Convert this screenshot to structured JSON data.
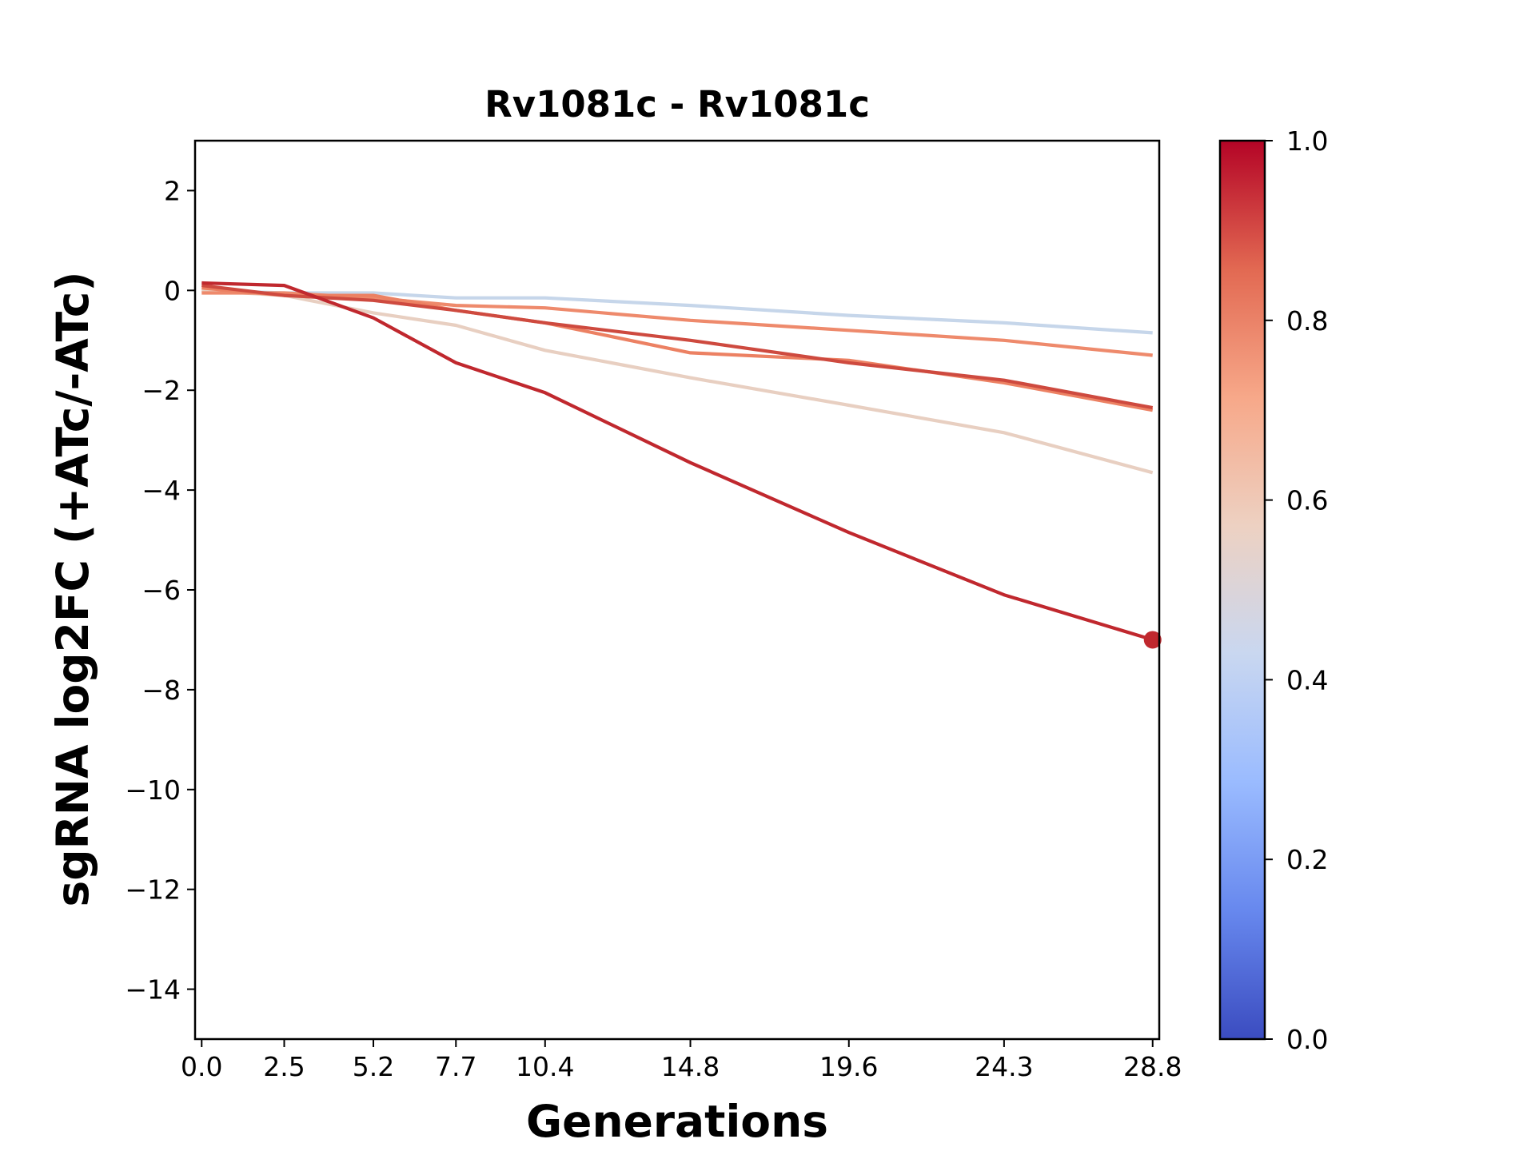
{
  "chart_data": {
    "type": "line",
    "title": "Rv1081c - Rv1081c",
    "xlabel": "Generations",
    "ylabel": "sgRNA log2FC (+ATc/-ATc)",
    "x": [
      0.0,
      2.5,
      5.2,
      7.7,
      10.4,
      14.8,
      19.6,
      24.3,
      28.8
    ],
    "x_tick_labels": [
      "0.0",
      "2.5",
      "5.2",
      "7.7",
      "10.4",
      "14.8",
      "19.6",
      "24.3",
      "28.8"
    ],
    "xlim": [
      -0.2,
      29.0
    ],
    "ylim": [
      -15,
      3
    ],
    "y_ticks": [
      2,
      0,
      -2,
      -4,
      -6,
      -8,
      -10,
      -12,
      -14
    ],
    "y_tick_labels": [
      "2",
      "0",
      "−2",
      "−4",
      "−6",
      "−8",
      "−10",
      "−12",
      "−14"
    ],
    "grid": false,
    "series": [
      {
        "color": "#c6d6ea",
        "values": [
          0.0,
          -0.05,
          -0.05,
          -0.15,
          -0.15,
          -0.3,
          -0.5,
          -0.65,
          -0.85
        ]
      },
      {
        "color": "#e8cfc1",
        "values": [
          0.0,
          -0.1,
          -0.45,
          -0.7,
          -1.2,
          -1.75,
          -2.3,
          -2.85,
          -3.65
        ]
      },
      {
        "color": "#ee8a6c",
        "values": [
          -0.05,
          -0.05,
          -0.15,
          -0.3,
          -0.35,
          -0.6,
          -0.8,
          -1.0,
          -1.3
        ]
      },
      {
        "color": "#ec8163",
        "values": [
          0.05,
          -0.1,
          -0.1,
          -0.4,
          -0.65,
          -1.25,
          -1.4,
          -1.85,
          -2.4
        ]
      },
      {
        "color": "#ce4a3f",
        "values": [
          0.1,
          -0.1,
          -0.2,
          -0.4,
          -0.65,
          -1.0,
          -1.45,
          -1.8,
          -2.35
        ]
      },
      {
        "color": "#c0282e",
        "values": [
          0.15,
          0.1,
          -0.55,
          -1.45,
          -2.05,
          -3.45,
          -4.85,
          -6.1,
          -7.0
        ],
        "end_marker": true
      }
    ],
    "colorbar": {
      "min": 0.0,
      "max": 1.0,
      "tick_labels": [
        "1.0",
        "0.8",
        "0.6",
        "0.4",
        "0.2",
        "0.0"
      ],
      "tick_values": [
        1.0,
        0.8,
        0.6,
        0.4,
        0.2,
        0.0
      ],
      "colormap": "coolwarm",
      "stops": [
        "#3b4cc0",
        "#6788ee",
        "#9abbff",
        "#c9d7f0",
        "#edd1c2",
        "#f7a889",
        "#e26952",
        "#b40426"
      ]
    }
  }
}
